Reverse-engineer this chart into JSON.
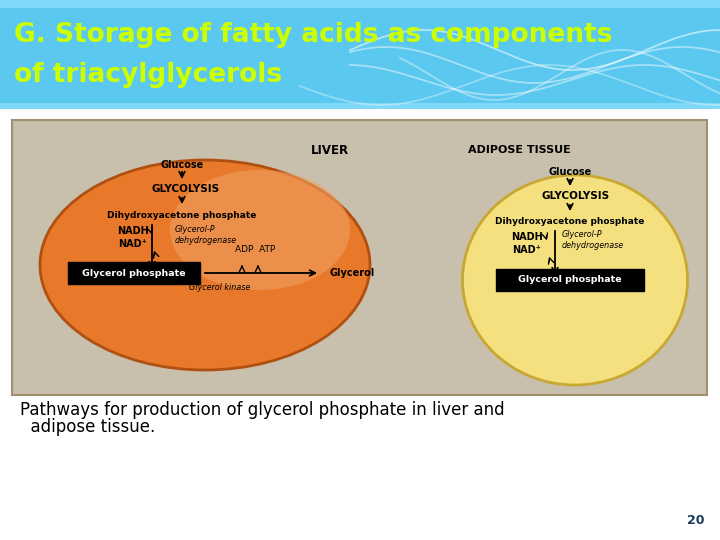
{
  "title_line1": "G. Storage of fatty acids as components",
  "title_line2": "of triacylglycerols",
  "title_color": "#ccff00",
  "title_bg_top": "#5bc8f0",
  "title_bg_bottom": "#2aa8e0",
  "title_fontsize": 19,
  "body_bg": "#ffffff",
  "diagram_bg": "#c9bfad",
  "diagram_border": "#a09070",
  "liver_color_main": "#e8782a",
  "liver_color_light": "#f0a060",
  "adipose_color": "#f5e080",
  "adipose_border": "#c8a830",
  "liver_border": "#b05010",
  "liver_label": "LIVER",
  "adipose_label": "ADIPOSE TISSUE",
  "caption_line1": "Pathways for production of glycerol phosphate in liver and",
  "caption_line2": "  adipose tissue.",
  "page_number": "20",
  "caption_fontsize": 12,
  "page_num_color": "#1a3a5c",
  "wave_color": "#ffffff"
}
